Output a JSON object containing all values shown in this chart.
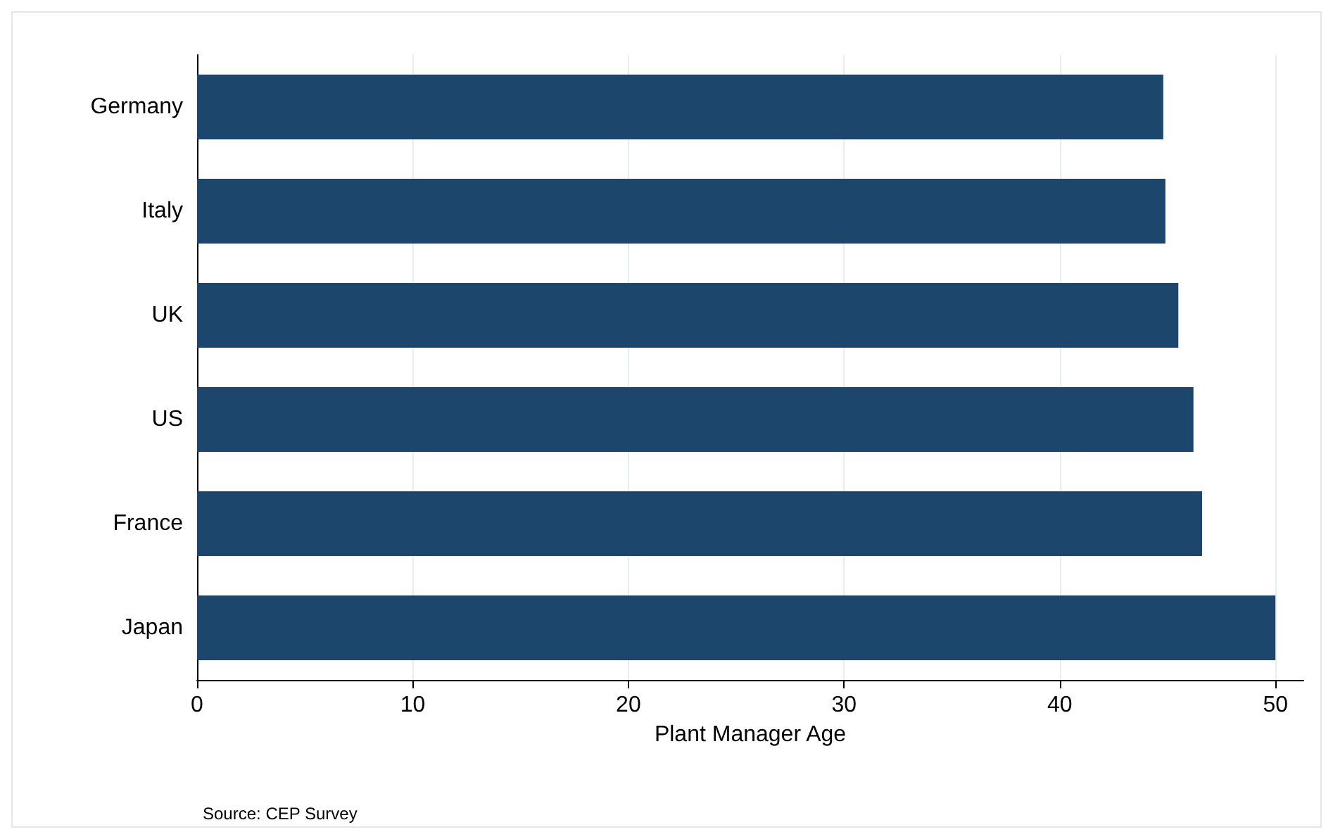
{
  "chart_data": {
    "type": "bar",
    "orientation": "horizontal",
    "categories": [
      "Germany",
      "Italy",
      "UK",
      "US",
      "France",
      "Japan"
    ],
    "values": [
      44.8,
      44.9,
      45.5,
      46.2,
      46.6,
      50.0
    ],
    "color": "#1c466c",
    "xlim": [
      0,
      51.3
    ],
    "xticks": [
      0,
      10,
      20,
      30,
      40,
      50
    ],
    "xlabel": "Plant Manager Age",
    "grid": "x",
    "annotations": [
      "Source: CEP Survey"
    ]
  }
}
